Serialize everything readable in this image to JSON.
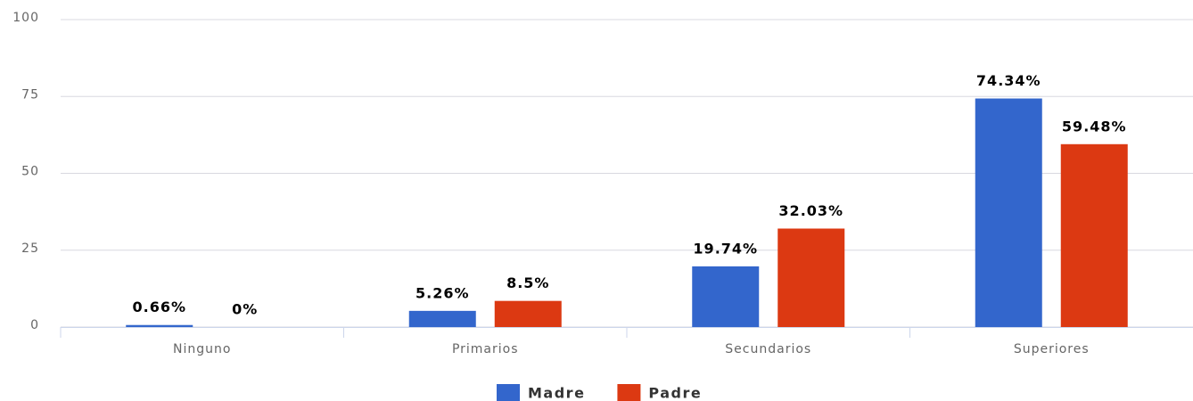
{
  "chart_data": {
    "type": "bar",
    "categories": [
      "Ninguno",
      "Primarios",
      "Secundarios",
      "Superiores"
    ],
    "series": [
      {
        "name": "Madre",
        "color": "#3366cc",
        "values": [
          0.66,
          5.26,
          19.74,
          74.34
        ],
        "value_labels": [
          "0.66%",
          "5.26%",
          "19.74%",
          "74.34%"
        ]
      },
      {
        "name": "Padre",
        "color": "#dc3912",
        "values": [
          0,
          8.5,
          32.03,
          59.48
        ],
        "value_labels": [
          "0%",
          "8.5%",
          "32.03%",
          "59.48%"
        ]
      }
    ],
    "ylim": [
      0,
      100
    ],
    "yticks": [
      0,
      25,
      50,
      75,
      100
    ],
    "grid": true,
    "legend": "bottom"
  }
}
